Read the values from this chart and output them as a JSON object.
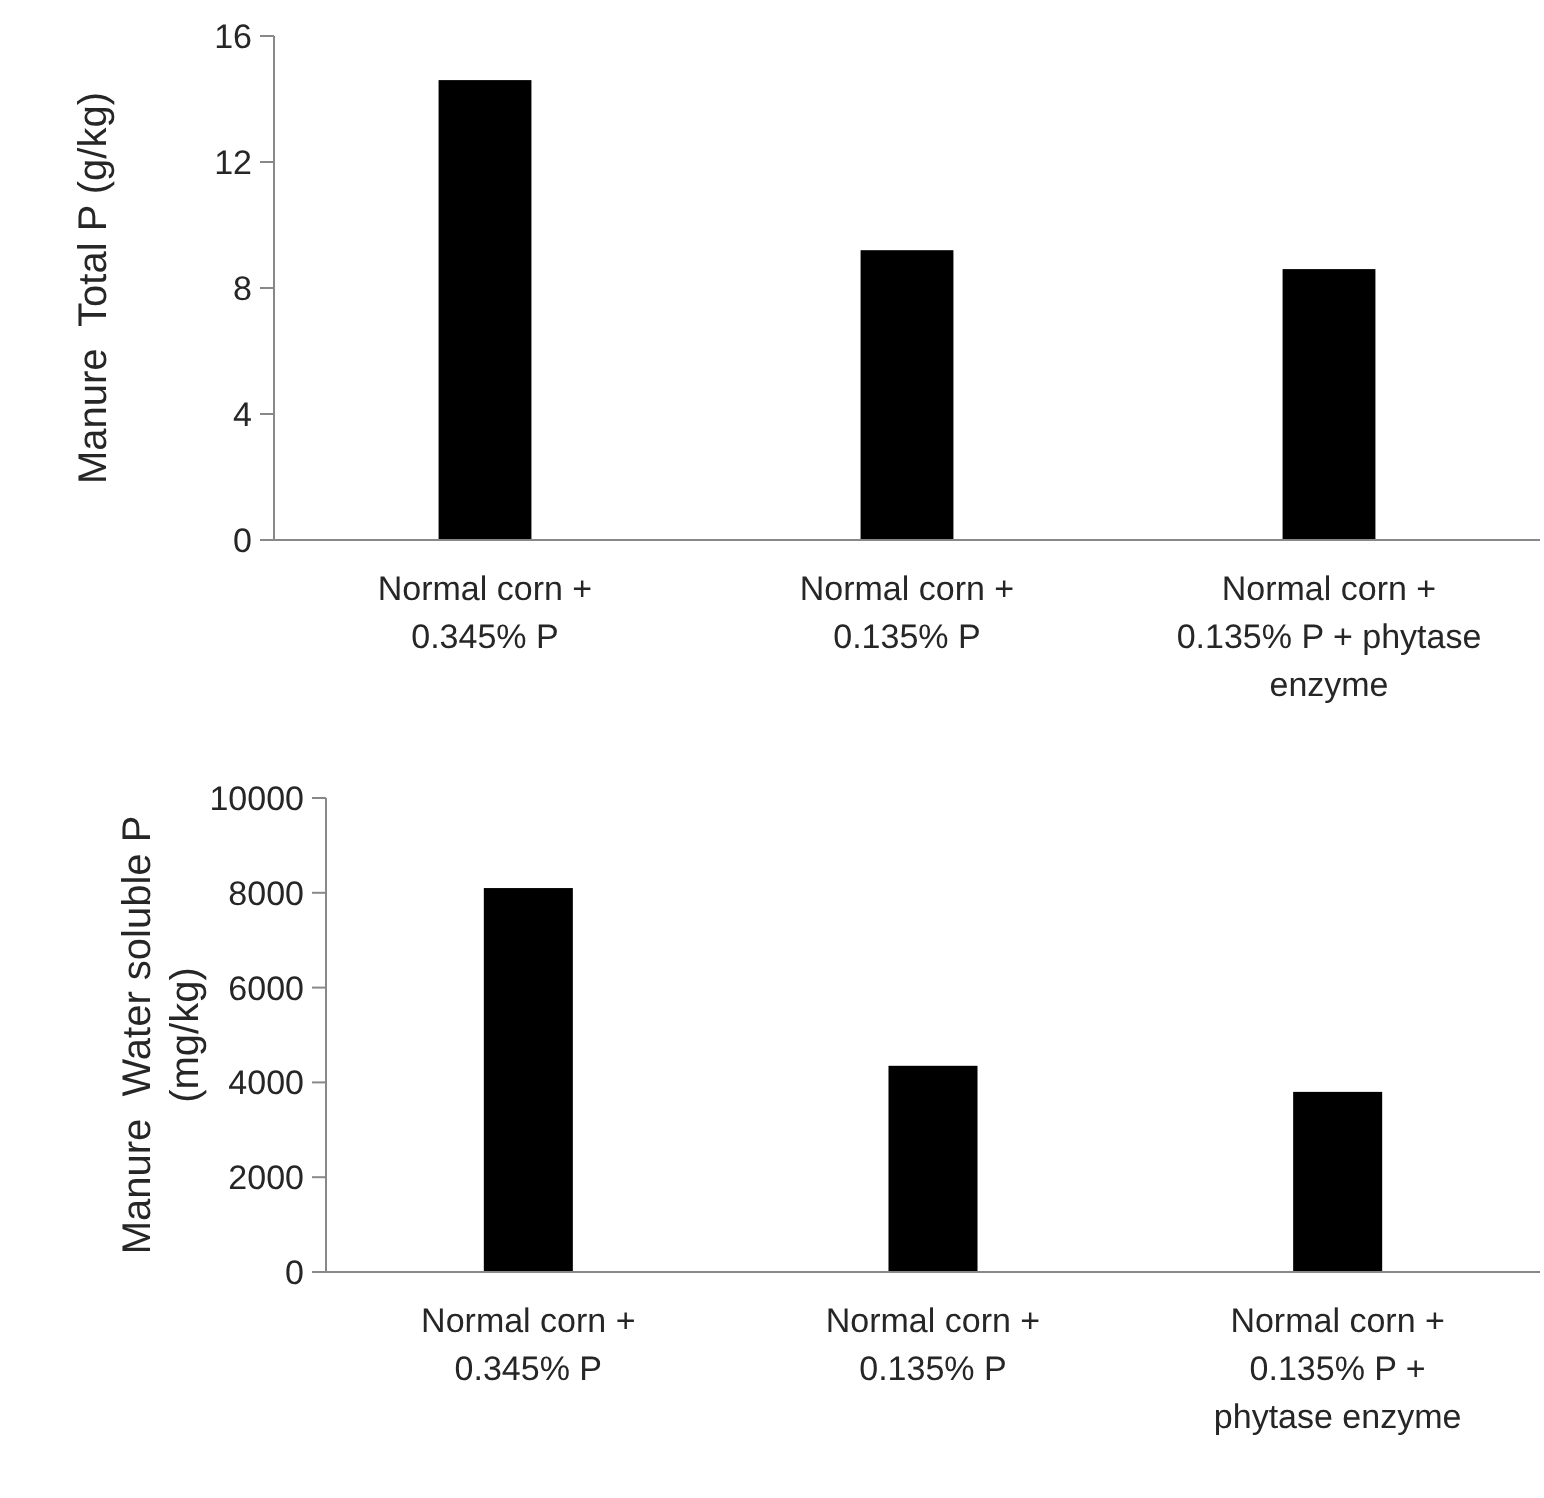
{
  "chart_data": [
    {
      "type": "bar",
      "categories": [
        "Normal corn + 0.345% P",
        "Normal corn + 0.135% P",
        "Normal corn + 0.135% P + phytase enzyme"
      ],
      "values": [
        14.6,
        9.2,
        8.6
      ],
      "color": "#000000",
      "ylabel": "Manure  Total P (g/kg)",
      "ylim": [
        0,
        16
      ],
      "yticks": [
        0,
        4,
        8,
        12,
        16
      ],
      "grid": false
    },
    {
      "type": "bar",
      "categories": [
        "Normal corn + 0.345% P",
        "Normal corn + 0.135% P",
        "Normal corn + 0.135% P + phytase enzyme"
      ],
      "values": [
        8100,
        4350,
        3800
      ],
      "color": "#000000",
      "ylabel": "Manure  Water soluble P (mg/kg)",
      "ylim": [
        0,
        10000
      ],
      "yticks": [
        0,
        2000,
        4000,
        6000,
        8000,
        10000
      ],
      "grid": false
    }
  ]
}
